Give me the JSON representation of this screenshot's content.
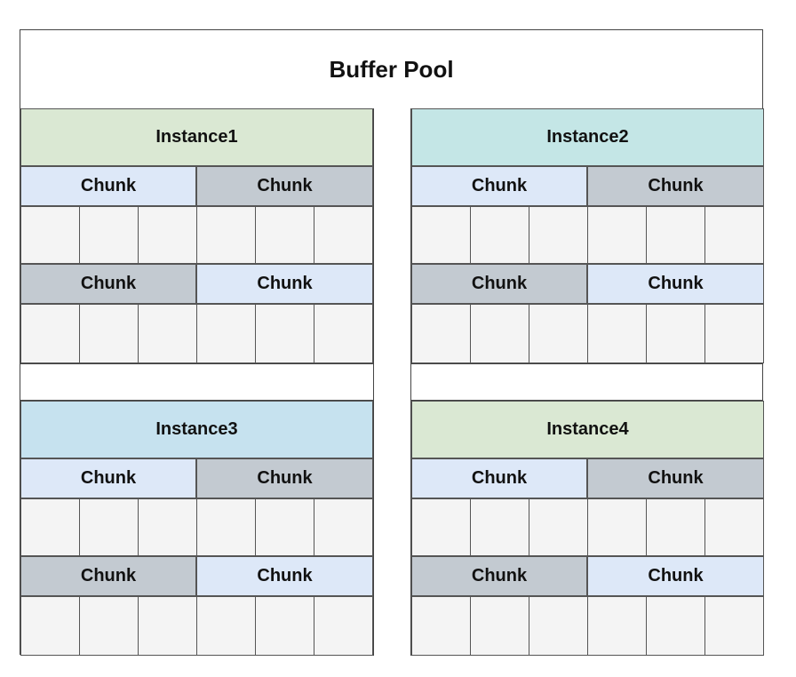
{
  "title": "Buffer Pool",
  "colors": {
    "green": "#dae8d3",
    "teal": "#c4e6e6",
    "blue": "#c6e2ef",
    "chunk_light": "#dde8f8",
    "chunk_dark": "#c3cad1",
    "cell": "#f4f4f4",
    "border": "#555555"
  },
  "instances": [
    {
      "label": "Instance1",
      "header_color": "#dae8d3",
      "chunks": [
        {
          "label": "Chunk",
          "color": "#dde8f8"
        },
        {
          "label": "Chunk",
          "color": "#c3cad1"
        },
        {
          "label": "Chunk",
          "color": "#c3cad1"
        },
        {
          "label": "Chunk",
          "color": "#dde8f8"
        }
      ]
    },
    {
      "label": "Instance2",
      "header_color": "#c4e6e6",
      "chunks": [
        {
          "label": "Chunk",
          "color": "#dde8f8"
        },
        {
          "label": "Chunk",
          "color": "#c3cad1"
        },
        {
          "label": "Chunk",
          "color": "#c3cad1"
        },
        {
          "label": "Chunk",
          "color": "#dde8f8"
        }
      ]
    },
    {
      "label": "Instance3",
      "header_color": "#c6e2ef",
      "chunks": [
        {
          "label": "Chunk",
          "color": "#dde8f8"
        },
        {
          "label": "Chunk",
          "color": "#c3cad1"
        },
        {
          "label": "Chunk",
          "color": "#c3cad1"
        },
        {
          "label": "Chunk",
          "color": "#dde8f8"
        }
      ]
    },
    {
      "label": "Instance4",
      "header_color": "#dae8d3",
      "chunks": [
        {
          "label": "Chunk",
          "color": "#dde8f8"
        },
        {
          "label": "Chunk",
          "color": "#c3cad1"
        },
        {
          "label": "Chunk",
          "color": "#c3cad1"
        },
        {
          "label": "Chunk",
          "color": "#dde8f8"
        }
      ]
    }
  ]
}
